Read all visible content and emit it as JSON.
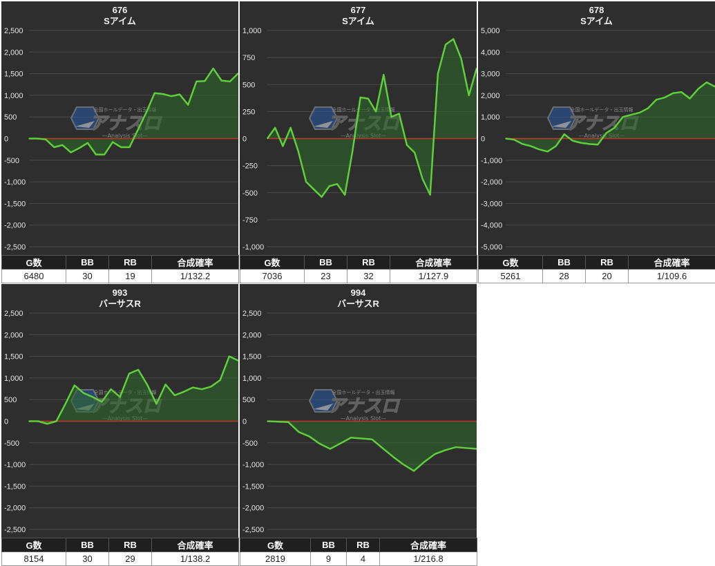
{
  "headers": [
    "G数",
    "BB",
    "RB",
    "合成確率"
  ],
  "colors": {
    "background": "#2e2e2e",
    "line": "#5fd03c",
    "fill": "#2f6b2a",
    "zero_line": "#c0392b",
    "grid": "#4a4a4a"
  },
  "watermark": {
    "logo_text": "アナスロ",
    "sub_text": "—Analysis Slot—",
    "top_text": "全国ホールデータ・出玉情報"
  },
  "chart_data": [
    {
      "type": "area",
      "title": "676",
      "subtitle": "Sアイム",
      "ylim": [
        -2500,
        2500
      ],
      "yticks": [
        2500,
        2000,
        1500,
        1000,
        500,
        0,
        -500,
        -1000,
        -1500,
        -2000,
        -2500
      ],
      "ytick_labels": [
        "2,500",
        "2,000",
        "1,500",
        "1,000",
        "500",
        "0",
        "-500",
        "-1,000",
        "-1,500",
        "-2,000",
        "-2,500"
      ],
      "series": [
        {
          "values": [
            0,
            0,
            -20,
            -200,
            -150,
            -320,
            -220,
            -100,
            -370,
            -370,
            -80,
            -200,
            -200,
            200,
            600,
            1050,
            1030,
            980,
            1020,
            780,
            1320,
            1330,
            1620,
            1340,
            1320,
            1510
          ]
        }
      ],
      "stats": {
        "games": "6480",
        "bb": "30",
        "rb": "19",
        "prob": "1/132.2"
      }
    },
    {
      "type": "area",
      "title": "677",
      "subtitle": "Sアイム",
      "ylim": [
        -1000,
        1000
      ],
      "yticks": [
        1000,
        750,
        500,
        250,
        0,
        -250,
        -500,
        -750,
        -1000
      ],
      "ytick_labels": [
        "1,000",
        "750",
        "500",
        "250",
        "0",
        "-250",
        "-500",
        "-750",
        "-1,000"
      ],
      "series": [
        {
          "values": [
            0,
            100,
            -70,
            100,
            -120,
            -400,
            -470,
            -540,
            -440,
            -420,
            -520,
            -110,
            380,
            370,
            250,
            590,
            200,
            230,
            -60,
            -130,
            -370,
            -520,
            600,
            870,
            920,
            740,
            400,
            650
          ]
        }
      ],
      "stats": {
        "games": "7036",
        "bb": "23",
        "rb": "32",
        "prob": "1/127.9"
      }
    },
    {
      "type": "area",
      "title": "678",
      "subtitle": "Sアイム",
      "ylim": [
        -5000,
        5000
      ],
      "yticks": [
        5000,
        4000,
        3000,
        2000,
        1000,
        0,
        -1000,
        -2000,
        -3000,
        -4000,
        -5000
      ],
      "ytick_labels": [
        "5,000",
        "4,000",
        "3,000",
        "2,000",
        "1,000",
        "0",
        "-1,000",
        "-2,000",
        "-3,000",
        "-4,000",
        "-5,000"
      ],
      "series": [
        {
          "values": [
            0,
            -50,
            -250,
            -350,
            -500,
            -600,
            -350,
            200,
            -100,
            -200,
            -250,
            -280,
            250,
            500,
            1000,
            1100,
            1200,
            1400,
            1800,
            1900,
            2100,
            2150,
            1850,
            2300,
            2600,
            2400
          ]
        }
      ],
      "stats": {
        "games": "5261",
        "bb": "28",
        "rb": "20",
        "prob": "1/109.6"
      }
    },
    {
      "type": "area",
      "title": "993",
      "subtitle": "バーサスR",
      "ylim": [
        -2500,
        2500
      ],
      "yticks": [
        2500,
        2000,
        1500,
        1000,
        500,
        0,
        -500,
        -1000,
        -1500,
        -2000,
        -2500
      ],
      "ytick_labels": [
        "2,500",
        "2,000",
        "1,500",
        "1,000",
        "500",
        "0",
        "-500",
        "-1,000",
        "-1,500",
        "-2,000",
        "-2,500"
      ],
      "series": [
        {
          "values": [
            0,
            0,
            -60,
            0,
            400,
            830,
            650,
            560,
            450,
            740,
            560,
            1100,
            1190,
            840,
            400,
            850,
            600,
            680,
            780,
            740,
            800,
            950,
            1500,
            1400
          ]
        }
      ],
      "stats": {
        "games": "8154",
        "bb": "30",
        "rb": "29",
        "prob": "1/138.2"
      }
    },
    {
      "type": "area",
      "title": "994",
      "subtitle": "バーサスR",
      "ylim": [
        -2500,
        2500
      ],
      "yticks": [
        2500,
        2000,
        1500,
        1000,
        500,
        0,
        -500,
        -1000,
        -1500,
        -2000,
        -2500
      ],
      "ytick_labels": [
        "2,500",
        "2,000",
        "1,500",
        "1,000",
        "500",
        "0",
        "-500",
        "-1,000",
        "-1,500",
        "-2,000",
        "-2,500"
      ],
      "series": [
        {
          "values": [
            0,
            -10,
            -20,
            -250,
            -350,
            -520,
            -640,
            -510,
            -380,
            -400,
            -420,
            -620,
            -820,
            -1000,
            -1150,
            -940,
            -760,
            -670,
            -600,
            -620,
            -640
          ]
        }
      ],
      "stats": {
        "games": "2819",
        "bb": "9",
        "rb": "4",
        "prob": "1/216.8"
      }
    }
  ]
}
